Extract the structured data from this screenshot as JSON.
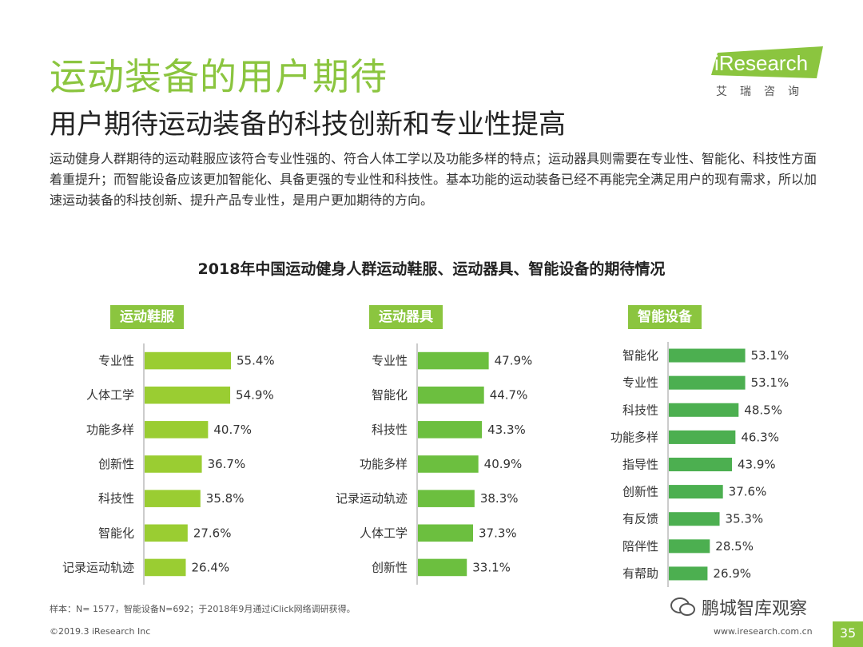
{
  "header": {
    "title": "运动装备的用户期待",
    "subtitle": "用户期待运动装备的科技创新和专业性提高"
  },
  "logo": {
    "text": "iResearch",
    "cn": "艾瑞咨询"
  },
  "description": "运动健身人群期待的运动鞋服应该符合专业性强的、符合人体工学以及功能多样的特点；运动器具则需要在专业性、智能化、科技性方面着重提升；而智能设备应该更加智能化、具备更强的专业性和科技性。基本功能的运动装备已经不再能完全满足用户的现有需求，所以加速运动装备的科技创新、提升产品专业性，是用户更加期待的方向。",
  "chart_data": [
    {
      "type": "bar",
      "orientation": "horizontal",
      "title": "2018年中国运动健身人群运动鞋服、运动器具、智能设备的期待情况",
      "panel": "运动鞋服",
      "categories": [
        "专业性",
        "人体工学",
        "功能多样",
        "创新性",
        "科技性",
        "智能化",
        "记录运动轨迹"
      ],
      "values": [
        55.4,
        54.9,
        40.7,
        36.7,
        35.8,
        27.6,
        26.4
      ],
      "unit": "%"
    },
    {
      "type": "bar",
      "orientation": "horizontal",
      "panel": "运动器具",
      "categories": [
        "专业性",
        "智能化",
        "科技性",
        "功能多样",
        "记录运动轨迹",
        "人体工学",
        "创新性"
      ],
      "values": [
        47.9,
        44.7,
        43.3,
        40.9,
        38.3,
        37.3,
        33.1
      ],
      "unit": "%"
    },
    {
      "type": "bar",
      "orientation": "horizontal",
      "panel": "智能设备",
      "categories": [
        "智能化",
        "专业性",
        "科技性",
        "功能多样",
        "指导性",
        "创新性",
        "有反馈",
        "陪伴性",
        "有帮助"
      ],
      "values": [
        53.1,
        53.1,
        48.5,
        46.3,
        43.9,
        37.6,
        35.3,
        28.5,
        26.9
      ],
      "unit": "%"
    }
  ],
  "colors": {
    "accent": "#8bc53f",
    "bar_left": "#9acd32",
    "bar_mid": "#6cbf3f",
    "bar_right": "#4caf50"
  },
  "footer": {
    "note": "样本：N= 1577，智能设备N=692；于2018年9月通过iClick网络调研获得。",
    "copyright": "©2019.3  iResearch Inc",
    "website": "www.iresearch.com.cn",
    "page": "35",
    "watermark": "鹏城智库观察"
  }
}
